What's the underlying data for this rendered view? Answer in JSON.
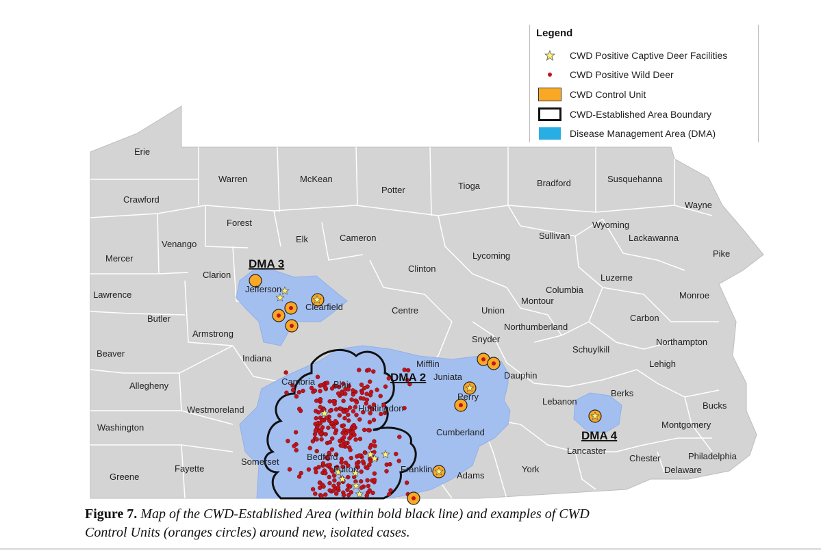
{
  "legend": {
    "title": "Legend",
    "items": [
      {
        "symbol": "star-icon",
        "label": "CWD Positive Captive Deer Facilities"
      },
      {
        "symbol": "dot-icon",
        "label": "CWD Positive Wild Deer"
      },
      {
        "symbol": "orange-square-icon",
        "label": "CWD Control Unit"
      },
      {
        "symbol": "outline-square-icon",
        "label": "CWD-Established Area Boundary"
      },
      {
        "symbol": "blue-square-icon",
        "label": "Disease Management Area (DMA)"
      }
    ]
  },
  "dma_labels": [
    "DMA 3",
    "DMA 2",
    "DMA 4"
  ],
  "counties": [
    "Erie",
    "Warren",
    "McKean",
    "Potter",
    "Tioga",
    "Bradford",
    "Susquehanna",
    "Wayne",
    "Crawford",
    "Forest",
    "Elk",
    "Cameron",
    "Sullivan",
    "Wyoming",
    "Lackawanna",
    "Venango",
    "Mercer",
    "Clinton",
    "Lycoming",
    "Pike",
    "Clarion",
    "Jefferson",
    "Luzerne",
    "Lawrence",
    "Clearfield",
    "Columbia",
    "Montour",
    "Monroe",
    "Butler",
    "Centre",
    "Union",
    "Carbon",
    "Armstrong",
    "Northumberland",
    "Snyder",
    "Northampton",
    "Beaver",
    "Indiana",
    "Schuylkill",
    "Mifflin",
    "Lehigh",
    "Juniata",
    "Cambria",
    "Blair",
    "Dauphin",
    "Allegheny",
    "Perry",
    "Berks",
    "Lebanon",
    "Westmoreland",
    "Huntingdon",
    "Bucks",
    "Washington",
    "Cumberland",
    "Montgomery",
    "Lancaster",
    "Somerset",
    "Bedford",
    "Fulton",
    "Franklin",
    "Philadelphia",
    "Chester",
    "Fayette",
    "York",
    "Delaware",
    "Adams",
    "Greene"
  ],
  "colors": {
    "state_fill": "#d4d4d4",
    "county_border": "#ffffff",
    "dma_fill": "#a3bff0",
    "control_unit": "#f9a825",
    "wild_deer": "#c0141b",
    "captive_star": "#fff176",
    "boundary": "#111111"
  },
  "caption": {
    "label": "Figure 7.",
    "line1": " Map of the CWD-Established Area (within bold black line) and examples of CWD",
    "line2": "Control Units (oranges circles) around new, isolated cases."
  }
}
